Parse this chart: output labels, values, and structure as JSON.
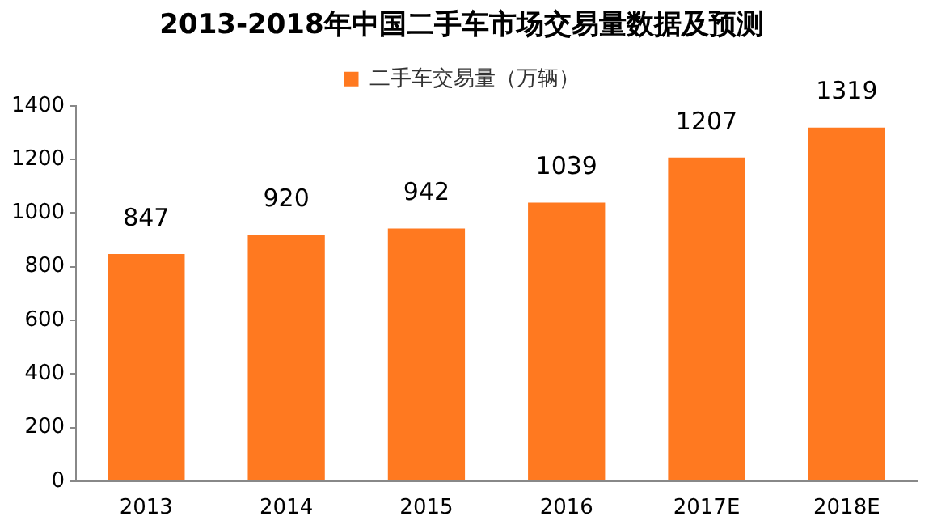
{
  "chart_data": {
    "type": "bar",
    "title": "2013-2018年中国二手车市场交易量数据及预测",
    "categories": [
      "2013",
      "2014",
      "2015",
      "2016",
      "2017E",
      "2018E"
    ],
    "series": [
      {
        "name": "二手车交易量（万辆）",
        "color": "#ff7920",
        "values": [
          847,
          920,
          942,
          1039,
          1207,
          1319
        ]
      }
    ],
    "ylim": [
      0,
      1400
    ],
    "yticks": [
      0,
      200,
      400,
      600,
      800,
      1000,
      1200,
      1400
    ],
    "grid": false,
    "legend": "top",
    "data_labels": true
  }
}
